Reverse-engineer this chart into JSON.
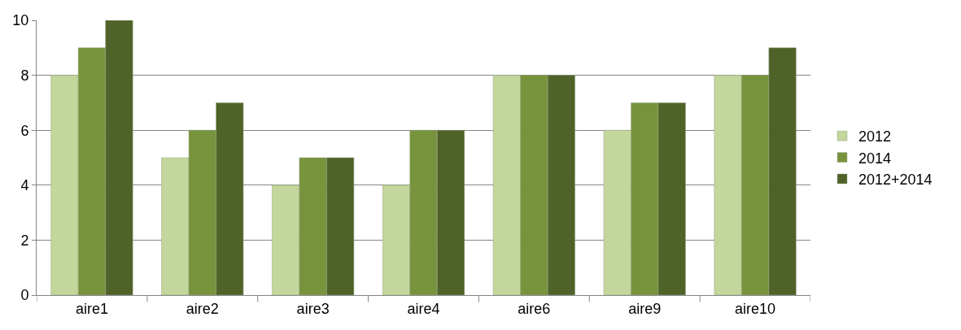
{
  "chart_data": {
    "type": "bar",
    "categories": [
      "aire1",
      "aire2",
      "aire3",
      "aire4",
      "aire6",
      "aire9",
      "aire10"
    ],
    "series": [
      {
        "name": "2012",
        "color": "#c3d69b",
        "values": [
          8,
          5,
          4,
          4,
          8,
          6,
          8
        ]
      },
      {
        "name": "2014",
        "color": "#77933c",
        "values": [
          9,
          6,
          5,
          6,
          8,
          7,
          8
        ]
      },
      {
        "name": "2012+2014",
        "color": "#4f6228",
        "values": [
          10,
          7,
          5,
          6,
          8,
          7,
          9
        ]
      }
    ],
    "ylim": [
      0,
      10
    ],
    "yticks": [
      0,
      2,
      4,
      6,
      8,
      10
    ],
    "grid": "y",
    "legend": "right"
  }
}
